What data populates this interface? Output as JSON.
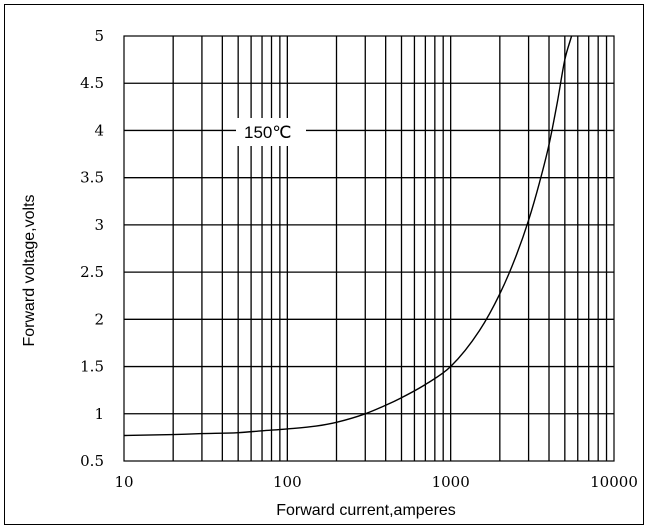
{
  "chart_data": {
    "type": "line",
    "title": "",
    "xlabel": "Forward current,amperes",
    "ylabel": "Forward voltage,volts",
    "x_scale": "log",
    "xlim": [
      10,
      10000
    ],
    "ylim": [
      0.5,
      5
    ],
    "x_ticks": [
      10,
      100,
      1000,
      10000
    ],
    "x_tick_labels": [
      "10",
      "100",
      "1000",
      "10000"
    ],
    "y_ticks": [
      0.5,
      1,
      1.5,
      2,
      2.5,
      3,
      3.5,
      4,
      4.5,
      5
    ],
    "y_tick_labels": [
      "0.5",
      "1",
      "1.5",
      "2",
      "2.5",
      "3",
      "3.5",
      "4",
      "4.5",
      "5"
    ],
    "grid": true,
    "annotation": "150℃",
    "series": [
      {
        "x": [
          10,
          20,
          30,
          50,
          70,
          100,
          150,
          200,
          300,
          400,
          500,
          700,
          1000,
          1500,
          2000,
          2500,
          3000,
          3500,
          4000,
          4500,
          5000,
          5500
        ],
        "y": [
          0.77,
          0.78,
          0.79,
          0.8,
          0.82,
          0.84,
          0.87,
          0.91,
          1.0,
          1.09,
          1.17,
          1.31,
          1.5,
          1.88,
          2.27,
          2.66,
          3.05,
          3.45,
          3.85,
          4.3,
          4.75,
          5.0
        ]
      }
    ]
  }
}
